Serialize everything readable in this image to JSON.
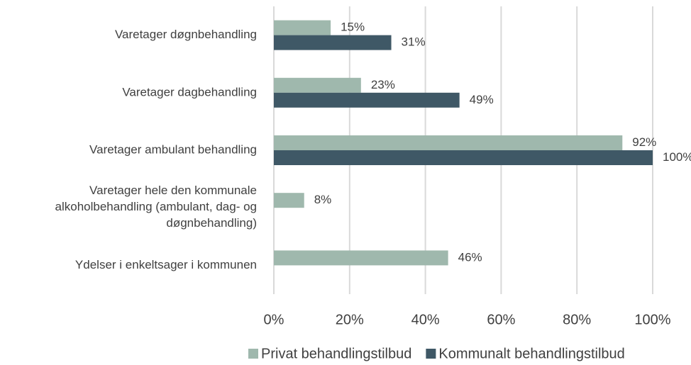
{
  "chart_data": {
    "type": "bar",
    "orientation": "horizontal",
    "categories": [
      "Varetager døgnbehandling",
      "Varetager dagbehandling",
      "Varetager ambulant behandling",
      "Varetager hele den kommunale\nalkoholbehandling (ambulant, dag- og\ndøgnbehandling)",
      "Ydelser i enkeltsager i kommunen"
    ],
    "series": [
      {
        "name": "Privat behandlingstilbud",
        "color": "#9fb8ad",
        "values": [
          15,
          23,
          92,
          8,
          46
        ],
        "value_labels": [
          "15%",
          "23%",
          "92%",
          "8%",
          "46%"
        ]
      },
      {
        "name": "Kommunalt behandlingstilbud",
        "color": "#3f5866",
        "values": [
          31,
          49,
          100,
          null,
          null
        ],
        "value_labels": [
          "31%",
          "49%",
          "100%",
          null,
          null
        ]
      }
    ],
    "xlim": [
      0,
      100
    ],
    "xticks": [
      {
        "value": 0,
        "label": "0%"
      },
      {
        "value": 20,
        "label": "20%"
      },
      {
        "value": 40,
        "label": "40%"
      },
      {
        "value": 60,
        "label": "60%"
      },
      {
        "value": 80,
        "label": "80%"
      },
      {
        "value": 100,
        "label": "100%"
      }
    ],
    "grid": true,
    "legend": "bottom"
  }
}
